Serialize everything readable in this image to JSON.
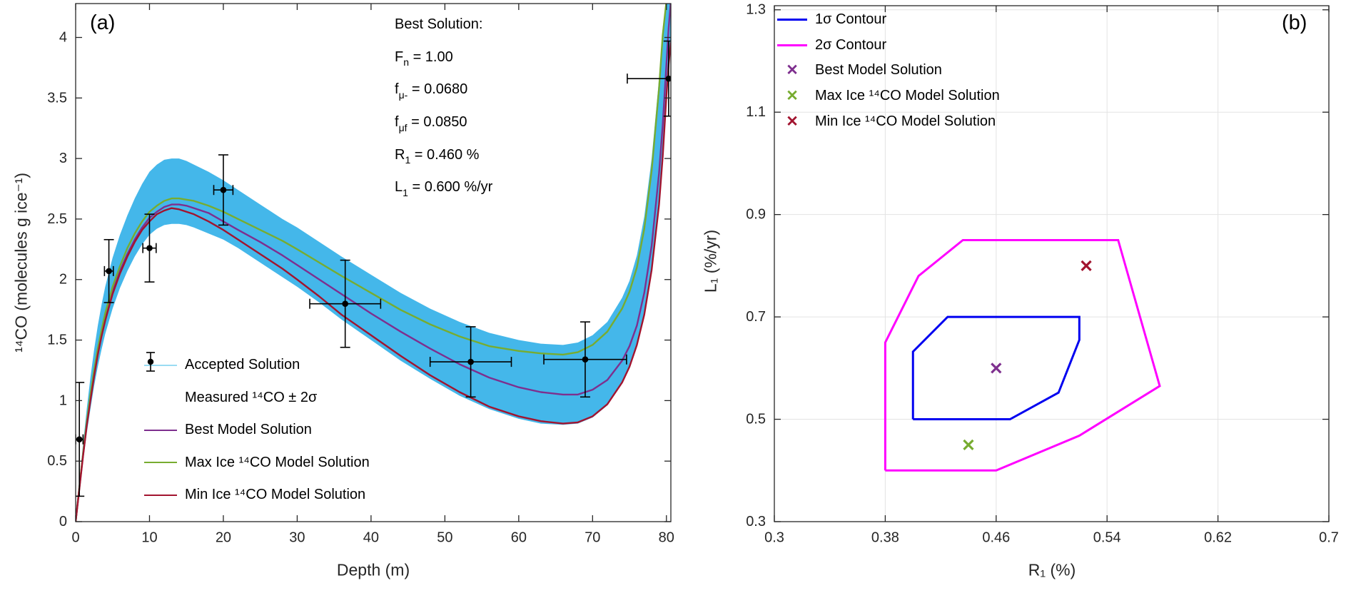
{
  "figure": {
    "background": "#ffffff"
  },
  "chart_data": [
    {
      "id": "panel_a",
      "type": "line",
      "panel_label": "(a)",
      "xlabel": "Depth (m)",
      "ylabel": "¹⁴CO (molecules g ice⁻¹)",
      "xlim": [
        0,
        80.6
      ],
      "ylim": [
        0,
        4.28
      ],
      "grid": false,
      "xticks": {
        "values": [
          0,
          10,
          20,
          30,
          40,
          50,
          60,
          70,
          80
        ],
        "labels": [
          "0",
          "10",
          "20",
          "30",
          "40",
          "50",
          "60",
          "70",
          "80"
        ]
      },
      "yticks": {
        "values": [
          0,
          0.5,
          1,
          1.5,
          2,
          2.5,
          3,
          3.5,
          4
        ],
        "labels": [
          "0",
          "0.5",
          "1",
          "1.5",
          "2",
          "2.5",
          "3",
          "3.5",
          "4"
        ]
      },
      "x": [
        0,
        0.5,
        1,
        1.5,
        2,
        2.5,
        3,
        3.5,
        4,
        5,
        6,
        7,
        8,
        9,
        10,
        11,
        12,
        13,
        14,
        15,
        16,
        18,
        20,
        22,
        25,
        28,
        30,
        33,
        36,
        40,
        44,
        48,
        52,
        56,
        60,
        63,
        66,
        68,
        70,
        72,
        74,
        75,
        76,
        77,
        78,
        79,
        79.5,
        80,
        80.3,
        80.6
      ],
      "band": {
        "name": "Accepted Solution",
        "color": "#44b7ea",
        "lo": [
          0,
          0.25,
          0.5,
          0.73,
          0.93,
          1.12,
          1.28,
          1.42,
          1.55,
          1.76,
          1.93,
          2.07,
          2.19,
          2.29,
          2.37,
          2.42,
          2.45,
          2.46,
          2.46,
          2.45,
          2.43,
          2.38,
          2.33,
          2.26,
          2.14,
          2.02,
          1.94,
          1.81,
          1.67,
          1.5,
          1.33,
          1.18,
          1.04,
          0.93,
          0.85,
          0.81,
          0.8,
          0.81,
          0.86,
          0.96,
          1.14,
          1.27,
          1.45,
          1.7,
          2.07,
          2.61,
          3.01,
          3.51,
          3.77,
          3.95
        ],
        "hi": [
          0,
          0.33,
          0.64,
          0.93,
          1.19,
          1.42,
          1.62,
          1.79,
          1.94,
          2.18,
          2.37,
          2.53,
          2.67,
          2.79,
          2.89,
          2.95,
          2.99,
          3.0,
          3.0,
          2.98,
          2.95,
          2.89,
          2.82,
          2.74,
          2.62,
          2.5,
          2.43,
          2.31,
          2.19,
          2.04,
          1.89,
          1.76,
          1.65,
          1.56,
          1.5,
          1.47,
          1.46,
          1.48,
          1.54,
          1.65,
          1.85,
          1.99,
          2.2,
          2.52,
          3.0,
          3.66,
          4.08,
          4.3,
          4.3,
          4.3
        ]
      },
      "series": [
        {
          "name": "Best Model Solution",
          "color": "#7E2F8E",
          "width": 2.4,
          "y": [
            0,
            0.28,
            0.55,
            0.8,
            1.02,
            1.22,
            1.4,
            1.55,
            1.68,
            1.9,
            2.07,
            2.21,
            2.33,
            2.43,
            2.51,
            2.56,
            2.6,
            2.62,
            2.62,
            2.61,
            2.59,
            2.55,
            2.48,
            2.41,
            2.31,
            2.2,
            2.12,
            2.0,
            1.88,
            1.72,
            1.57,
            1.43,
            1.3,
            1.19,
            1.11,
            1.07,
            1.05,
            1.05,
            1.09,
            1.17,
            1.33,
            1.45,
            1.62,
            1.89,
            2.28,
            2.88,
            3.28,
            3.78,
            4.08,
            4.3
          ]
        },
        {
          "name": "Max Ice ¹⁴CO Model Solution",
          "color": "#77AC30",
          "width": 2.4,
          "y": [
            0,
            0.28,
            0.56,
            0.82,
            1.05,
            1.25,
            1.43,
            1.58,
            1.72,
            1.94,
            2.11,
            2.26,
            2.38,
            2.48,
            2.56,
            2.61,
            2.65,
            2.67,
            2.67,
            2.66,
            2.65,
            2.61,
            2.56,
            2.5,
            2.41,
            2.32,
            2.25,
            2.14,
            2.03,
            1.89,
            1.75,
            1.63,
            1.53,
            1.45,
            1.41,
            1.39,
            1.38,
            1.4,
            1.46,
            1.57,
            1.76,
            1.9,
            2.1,
            2.42,
            2.9,
            3.58,
            4.02,
            4.3,
            4.3,
            4.3
          ]
        },
        {
          "name": "Min Ice ¹⁴CO Model Solution",
          "color": "#A2142F",
          "width": 2.4,
          "y": [
            0,
            0.27,
            0.54,
            0.79,
            1.0,
            1.2,
            1.38,
            1.53,
            1.66,
            1.88,
            2.05,
            2.19,
            2.31,
            2.41,
            2.48,
            2.54,
            2.57,
            2.59,
            2.58,
            2.56,
            2.54,
            2.48,
            2.41,
            2.33,
            2.21,
            2.09,
            2.0,
            1.86,
            1.71,
            1.54,
            1.37,
            1.21,
            1.07,
            0.95,
            0.87,
            0.83,
            0.81,
            0.82,
            0.87,
            0.97,
            1.15,
            1.28,
            1.46,
            1.71,
            2.08,
            2.62,
            3.02,
            3.52,
            3.78,
            3.96
          ]
        }
      ],
      "measured": {
        "name": "Measured ¹⁴CO ± 2σ",
        "color": "#000000",
        "points": [
          [
            0.5,
            0.68,
            0.47,
            0.5
          ],
          [
            4.5,
            2.07,
            0.26,
            0.6
          ],
          [
            10,
            2.26,
            0.28,
            0.9
          ],
          [
            20,
            2.74,
            0.29,
            1.3
          ],
          [
            36.5,
            1.8,
            0.36,
            4.8
          ],
          [
            53.5,
            1.32,
            0.29,
            5.5
          ],
          [
            69,
            1.34,
            0.31,
            5.6
          ],
          [
            80.3,
            3.66,
            0.31,
            5.6
          ]
        ]
      },
      "annotation": {
        "lines": [
          {
            "pre": "Best Solution:",
            "sub": "",
            "post": ""
          },
          {
            "pre": "F",
            "sub": "n",
            "post": " = 1.00"
          },
          {
            "pre": "f",
            "sub": "μ-",
            "post": " = 0.0680"
          },
          {
            "pre": "f",
            "sub": "μf",
            "post": " = 0.0850"
          },
          {
            "pre": "R",
            "sub": "1",
            "post": " = 0.460 %"
          },
          {
            "pre": "L",
            "sub": "1",
            "post": " = 0.600 %/yr"
          }
        ]
      },
      "legend": [
        {
          "label": "Accepted Solution",
          "swatch": "line",
          "color": "#9adcf3",
          "thickness": 2
        },
        {
          "label": "Measured ¹⁴CO ± 2σ",
          "swatch": "errorbar",
          "color": "#000000"
        },
        {
          "label": "Best Model Solution",
          "swatch": "line",
          "color": "#7E2F8E",
          "thickness": 2.4
        },
        {
          "label": "Max Ice ¹⁴CO Model Solution",
          "swatch": "line",
          "color": "#77AC30",
          "thickness": 2.4
        },
        {
          "label": "Min Ice ¹⁴CO Model Solution",
          "swatch": "line",
          "color": "#A2142F",
          "thickness": 2.4
        }
      ]
    },
    {
      "id": "panel_b",
      "type": "contour",
      "panel_label": "(b)",
      "xlabel": "R₁ (%)",
      "ylabel": "L₁ (%/yr)",
      "xlim": [
        0.3,
        0.7
      ],
      "ylim": [
        0.3,
        1.308
      ],
      "grid": true,
      "xticks": {
        "values": [
          0.3,
          0.38,
          0.46,
          0.54,
          0.62,
          0.7
        ],
        "labels": [
          "0.3",
          "0.38",
          "0.46",
          "0.54",
          "0.62",
          "0.7"
        ]
      },
      "yticks": {
        "values": [
          0.3,
          0.5,
          0.7,
          0.9,
          1.1,
          1.3
        ],
        "labels": [
          "0.3",
          "0.5",
          "0.7",
          "0.9",
          "1.1",
          "1.3"
        ]
      },
      "contours": [
        {
          "name": "1σ Contour",
          "color": "#0000f0",
          "width": 3,
          "points": [
            [
              0.4,
              0.5
            ],
            [
              0.4,
              0.632
            ],
            [
              0.425,
              0.7
            ],
            [
              0.52,
              0.7
            ],
            [
              0.52,
              0.655
            ],
            [
              0.505,
              0.552
            ],
            [
              0.47,
              0.5
            ],
            [
              0.4,
              0.5
            ]
          ]
        },
        {
          "name": "2σ Contour",
          "color": "#FF00FF",
          "width": 3,
          "points": [
            [
              0.38,
              0.4
            ],
            [
              0.38,
              0.65
            ],
            [
              0.404,
              0.78
            ],
            [
              0.436,
              0.85
            ],
            [
              0.548,
              0.85
            ],
            [
              0.578,
              0.565
            ],
            [
              0.52,
              0.468
            ],
            [
              0.46,
              0.4
            ],
            [
              0.38,
              0.4
            ]
          ]
        }
      ],
      "markers": [
        {
          "name": "Best Model Solution",
          "color": "#7E2F8E",
          "x": 0.46,
          "y": 0.6
        },
        {
          "name": "Max Ice ¹⁴CO Model Solution",
          "color": "#77AC30",
          "x": 0.44,
          "y": 0.45
        },
        {
          "name": "Min Ice ¹⁴CO Model Solution",
          "color": "#A2142F",
          "x": 0.525,
          "y": 0.8
        }
      ],
      "legend": [
        {
          "label": "1σ Contour",
          "swatch": "line",
          "color": "#0000f0",
          "thickness": 3
        },
        {
          "label": "2σ Contour",
          "swatch": "line",
          "color": "#FF00FF",
          "thickness": 3
        },
        {
          "label": "Best Model Solution",
          "swatch": "x",
          "color": "#7E2F8E"
        },
        {
          "label": "Max Ice ¹⁴CO Model Solution",
          "swatch": "x",
          "color": "#77AC30"
        },
        {
          "label": "Min Ice ¹⁴CO Model Solution",
          "swatch": "x",
          "color": "#A2142F"
        }
      ]
    }
  ]
}
